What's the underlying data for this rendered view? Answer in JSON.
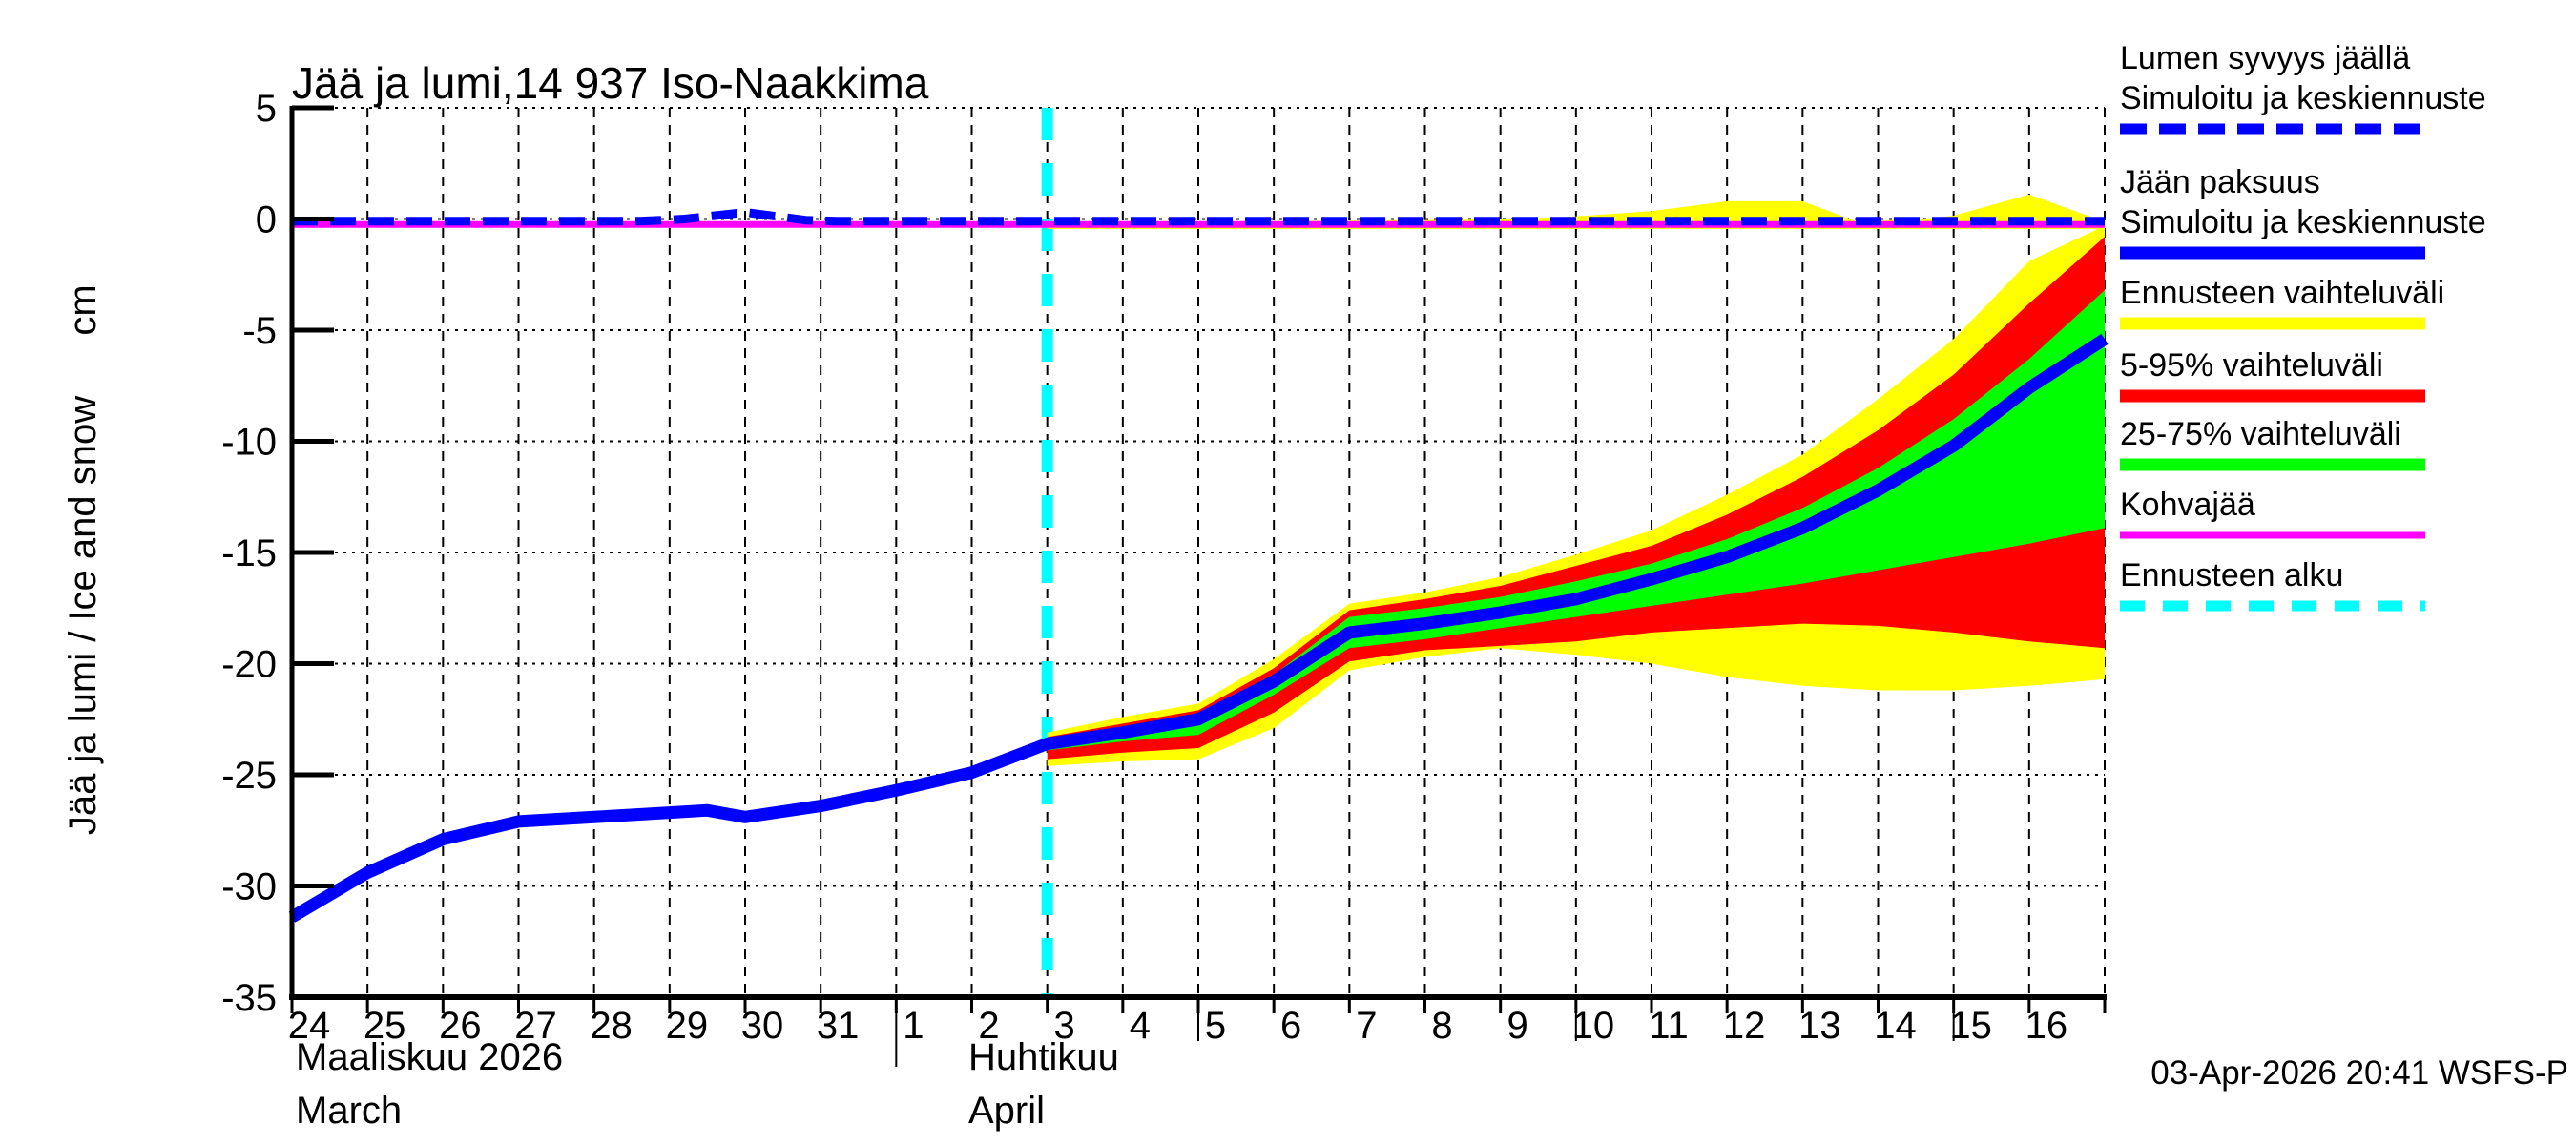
{
  "title": "Jää ja lumi,14 937 Iso-Naakkima",
  "y_axis": {
    "label": "Jää ja lumi / Ice and snow",
    "unit": "cm"
  },
  "x_axis": {
    "months": [
      {
        "name_fi": "Maaliskuu 2026",
        "name_en": "March",
        "start_day_index": 0
      },
      {
        "name_fi": "Huhtikuu",
        "name_en": "April",
        "start_day_index": 8
      }
    ],
    "day_labels": [
      "24",
      "25",
      "26",
      "27",
      "28",
      "29",
      "30",
      "31",
      "1",
      "2",
      "3",
      "4",
      "5",
      "6",
      "7",
      "8",
      "9",
      "10",
      "11",
      "12",
      "13",
      "14",
      "15",
      "16"
    ]
  },
  "footer": {
    "timestamp": "03-Apr-2026 20:41 WSFS-P"
  },
  "colors": {
    "background": "#ffffff",
    "axis": "#000000",
    "grid": "#000000",
    "simulated_line": "#0000ff",
    "forecast_range": "#ffff00",
    "range_5_95": "#ff0000",
    "range_25_75": "#00ff00",
    "kohvajaa": "#ff00ff",
    "forecast_start": "#00ffff"
  },
  "legend": [
    {
      "lines": [
        "Lumen syvyys jäällä",
        "Simuloitu ja keskiennuste"
      ],
      "color": "#0000ff",
      "style": "dashed-thick"
    },
    {
      "lines": [
        "Jään paksuus",
        "Simuloitu ja keskiennuste"
      ],
      "color": "#0000ff",
      "style": "solid-thick"
    },
    {
      "lines": [
        "Ennusteen vaihteluväli"
      ],
      "color": "#ffff00",
      "style": "solid-thick"
    },
    {
      "lines": [
        "5-95% vaihteluväli"
      ],
      "color": "#ff0000",
      "style": "solid-thick"
    },
    {
      "lines": [
        "25-75% vaihteluväli"
      ],
      "color": "#00ff00",
      "style": "solid-thick"
    },
    {
      "lines": [
        "Kohvajää"
      ],
      "color": "#ff00ff",
      "style": "solid-thin"
    },
    {
      "lines": [
        "Ennusteen alku"
      ],
      "color": "#00ffff",
      "style": "dashed-short"
    }
  ],
  "chart_data": {
    "type": "line",
    "title": "Jää ja lumi,14 937 Iso-Naakkima",
    "xlabel": "Maaliskuu 2026 (March) - Huhtikuu (April)",
    "ylabel": "Jää ja lumi / Ice and snow cm",
    "ylim": [
      -35,
      5
    ],
    "yticks": [
      5,
      0,
      -5,
      -10,
      -15,
      -20,
      -25,
      -30,
      -35
    ],
    "x_range_days": 24,
    "x_day0_date": "24 March 2026",
    "forecast_start_day": 10,
    "long_tick_days": [
      12,
      17,
      22
    ],
    "month_separator_day": 8,
    "series": [
      {
        "name": "ice_thickness_simulated_median",
        "color": "#0000ff",
        "style": "solid",
        "width": 13,
        "points": [
          [
            0,
            -31.4
          ],
          [
            1,
            -29.4
          ],
          [
            2,
            -27.9
          ],
          [
            3,
            -27.1
          ],
          [
            4,
            -26.9
          ],
          [
            5,
            -26.7
          ],
          [
            5.5,
            -26.6
          ],
          [
            6,
            -26.9
          ],
          [
            7,
            -26.4
          ],
          [
            8,
            -25.7
          ],
          [
            9,
            -24.9
          ],
          [
            10,
            -23.6
          ],
          [
            11,
            -23.1
          ],
          [
            12,
            -22.5
          ],
          [
            13,
            -20.8
          ],
          [
            14,
            -18.6
          ],
          [
            15,
            -18.2
          ],
          [
            16,
            -17.7
          ],
          [
            17,
            -17.1
          ],
          [
            18,
            -16.2
          ],
          [
            19,
            -15.2
          ],
          [
            20,
            -13.9
          ],
          [
            21,
            -12.2
          ],
          [
            22,
            -10.2
          ],
          [
            23,
            -7.6
          ],
          [
            24,
            -5.4
          ]
        ]
      },
      {
        "name": "kohvajaa_line",
        "color": "#ff00ff",
        "style": "solid",
        "width": 7,
        "points": [
          [
            0,
            -0.25
          ],
          [
            24,
            -0.25
          ]
        ]
      },
      {
        "name": "snow_depth_on_ice_simulated_median",
        "color": "#0000ff",
        "style": "dashed",
        "width": 9,
        "points": [
          [
            0,
            -0.1
          ],
          [
            4.6,
            -0.1
          ],
          [
            5.2,
            0.0
          ],
          [
            6,
            0.3
          ],
          [
            6.8,
            -0.05
          ],
          [
            7.2,
            -0.1
          ],
          [
            24,
            -0.1
          ]
        ]
      }
    ],
    "bands": [
      {
        "name": "snow_forecast_range",
        "color": "#ffff00",
        "upper": [
          [
            10,
            -0.15
          ],
          [
            13,
            -0.1
          ],
          [
            16,
            -0.02
          ],
          [
            17,
            0.12
          ],
          [
            18,
            0.35
          ],
          [
            19,
            0.8
          ],
          [
            20,
            0.8
          ],
          [
            20.7,
            -0.1
          ],
          [
            21.5,
            -0.03
          ],
          [
            22,
            0.15
          ],
          [
            23,
            1.1
          ],
          [
            24,
            -0.12
          ]
        ],
        "lower": [
          [
            10,
            -0.45
          ],
          [
            24,
            -0.45
          ]
        ]
      },
      {
        "name": "ice_forecast_range",
        "color": "#ffff00",
        "upper": [
          [
            10,
            -23.1
          ],
          [
            11,
            -22.4
          ],
          [
            12,
            -21.8
          ],
          [
            13,
            -19.8
          ],
          [
            14,
            -17.3
          ],
          [
            15,
            -16.8
          ],
          [
            16,
            -16.1
          ],
          [
            17,
            -15.1
          ],
          [
            18,
            -14.0
          ],
          [
            19,
            -12.4
          ],
          [
            20,
            -10.6
          ],
          [
            21,
            -8.1
          ],
          [
            22,
            -5.4
          ],
          [
            23,
            -1.9
          ],
          [
            24,
            -0.3
          ]
        ],
        "lower": [
          [
            10,
            -24.6
          ],
          [
            11,
            -24.4
          ],
          [
            12,
            -24.3
          ],
          [
            13,
            -22.9
          ],
          [
            14,
            -20.3
          ],
          [
            15,
            -19.7
          ],
          [
            16,
            -19.3
          ],
          [
            17,
            -19.6
          ],
          [
            18,
            -20.0
          ],
          [
            19,
            -20.6
          ],
          [
            20,
            -21.0
          ],
          [
            21,
            -21.2
          ],
          [
            22,
            -21.2
          ],
          [
            23,
            -21.0
          ],
          [
            24,
            -20.7
          ]
        ]
      },
      {
        "name": "ice_range_5_95",
        "color": "#ff0000",
        "upper": [
          [
            10,
            -23.3
          ],
          [
            11,
            -22.7
          ],
          [
            12,
            -22.1
          ],
          [
            13,
            -20.2
          ],
          [
            14,
            -17.6
          ],
          [
            15,
            -17.1
          ],
          [
            16,
            -16.5
          ],
          [
            17,
            -15.6
          ],
          [
            18,
            -14.7
          ],
          [
            19,
            -13.3
          ],
          [
            20,
            -11.6
          ],
          [
            21,
            -9.5
          ],
          [
            22,
            -7.0
          ],
          [
            23,
            -3.8
          ],
          [
            24,
            -0.8
          ]
        ],
        "lower": [
          [
            10,
            -24.3
          ],
          [
            11,
            -24.0
          ],
          [
            12,
            -23.8
          ],
          [
            13,
            -22.2
          ],
          [
            14,
            -19.9
          ],
          [
            15,
            -19.4
          ],
          [
            16,
            -19.2
          ],
          [
            17,
            -19.0
          ],
          [
            18,
            -18.6
          ],
          [
            19,
            -18.4
          ],
          [
            20,
            -18.2
          ],
          [
            21,
            -18.3
          ],
          [
            22,
            -18.6
          ],
          [
            23,
            -19.0
          ],
          [
            24,
            -19.3
          ]
        ]
      },
      {
        "name": "ice_range_25_75",
        "color": "#00ff00",
        "upper": [
          [
            10,
            -23.4
          ],
          [
            11,
            -22.9
          ],
          [
            12,
            -22.3
          ],
          [
            13,
            -20.5
          ],
          [
            14,
            -17.9
          ],
          [
            15,
            -17.5
          ],
          [
            16,
            -17.0
          ],
          [
            17,
            -16.3
          ],
          [
            18,
            -15.5
          ],
          [
            19,
            -14.4
          ],
          [
            20,
            -13.0
          ],
          [
            21,
            -11.2
          ],
          [
            22,
            -9.0
          ],
          [
            23,
            -6.3
          ],
          [
            24,
            -3.2
          ]
        ],
        "lower": [
          [
            10,
            -23.9
          ],
          [
            11,
            -23.5
          ],
          [
            12,
            -23.2
          ],
          [
            13,
            -21.4
          ],
          [
            14,
            -19.3
          ],
          [
            15,
            -18.9
          ],
          [
            16,
            -18.4
          ],
          [
            17,
            -17.9
          ],
          [
            18,
            -17.4
          ],
          [
            19,
            -16.9
          ],
          [
            20,
            -16.4
          ],
          [
            21,
            -15.8
          ],
          [
            22,
            -15.2
          ],
          [
            23,
            -14.6
          ],
          [
            24,
            -13.9
          ]
        ]
      }
    ]
  }
}
